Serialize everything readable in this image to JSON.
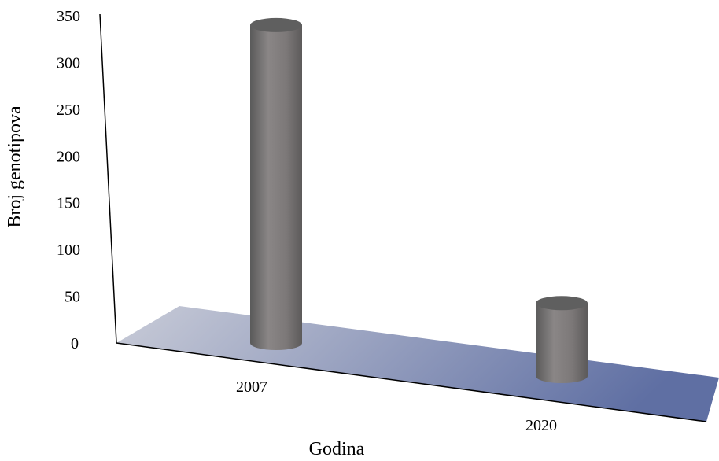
{
  "chart_data": {
    "type": "bar",
    "style": "3d-cylinder",
    "categories": [
      "2007",
      "2020"
    ],
    "series": [
      {
        "values": [
          340,
          78
        ]
      }
    ],
    "xlabel": "Godina",
    "ylabel": "Broj genotipova",
    "ylim": [
      0,
      350
    ],
    "yticks": [
      0,
      50,
      100,
      150,
      200,
      250,
      300,
      350
    ],
    "grid": false,
    "legend": "none",
    "colors": {
      "bar": "#7a7a7a",
      "bar_top": "#5f5f5f",
      "floor_start": "#c9ccd8",
      "floor_end": "#5f6fa3"
    }
  }
}
